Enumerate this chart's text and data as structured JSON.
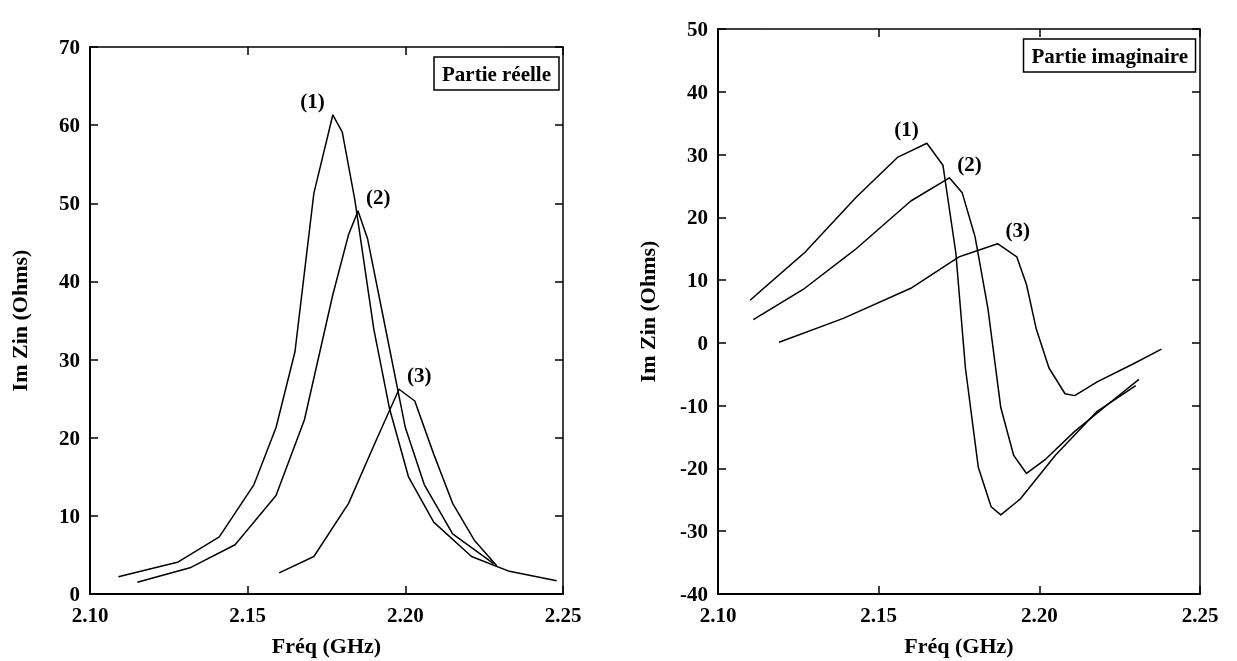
{
  "chart_data": [
    {
      "type": "line",
      "title": "Partie réelle",
      "xlabel": "Fréq (GHz)",
      "ylabel": "Im Zin (Ohms)",
      "xlim": [
        2.1,
        2.25
      ],
      "xticks": [
        {
          "value": 2.1,
          "label": "2.10"
        },
        {
          "value": 2.15,
          "label": "2.15"
        },
        {
          "value": 2.2,
          "label": "2.20"
        },
        {
          "value": 2.25,
          "label": "2.25"
        }
      ],
      "ylim": [
        0,
        70
      ],
      "yticks": [
        0,
        10,
        20,
        30,
        40,
        50,
        60,
        70
      ],
      "grid": false,
      "marker": "none",
      "line_style": "solid",
      "series": [
        {
          "name": "(1)",
          "color": "#000000",
          "x": [
            2.109,
            2.128,
            2.141,
            2.152,
            2.159,
            2.165,
            2.171,
            2.177,
            2.18,
            2.184,
            2.19,
            2.195,
            2.201,
            2.209,
            2.221,
            2.233,
            2.248
          ],
          "values": [
            2.2,
            4.1,
            7.3,
            14.0,
            21.3,
            31.0,
            51.3,
            61.3,
            59.1,
            50.4,
            33.9,
            23.7,
            15.0,
            9.2,
            4.8,
            2.9,
            1.7
          ]
        },
        {
          "name": "(2)",
          "color": "#000000",
          "x": [
            2.115,
            2.132,
            2.146,
            2.159,
            2.168,
            2.177,
            2.182,
            2.185,
            2.188,
            2.194,
            2.2,
            2.206,
            2.215,
            2.228
          ],
          "values": [
            1.5,
            3.4,
            6.3,
            12.6,
            22.3,
            38.3,
            46.0,
            49.0,
            45.5,
            33.4,
            21.3,
            14.0,
            7.7,
            3.9
          ]
        },
        {
          "name": "(3)",
          "color": "#000000",
          "x": [
            2.16,
            2.171,
            2.182,
            2.191,
            2.198,
            2.203,
            2.209,
            2.215,
            2.222,
            2.229
          ],
          "values": [
            2.7,
            4.8,
            11.6,
            19.9,
            26.2,
            24.7,
            17.9,
            11.6,
            6.8,
            3.6
          ]
        }
      ]
    },
    {
      "type": "line",
      "title": "Partie imaginaire",
      "xlabel": "Fréq (GHz)",
      "ylabel": "Im Zin (Ohms)",
      "xlim": [
        2.1,
        2.25
      ],
      "xticks": [
        {
          "value": 2.1,
          "label": "2.10"
        },
        {
          "value": 2.15,
          "label": "2.15"
        },
        {
          "value": 2.2,
          "label": "2.20"
        },
        {
          "value": 2.25,
          "label": "2.25"
        }
      ],
      "ylim": [
        -40,
        50
      ],
      "yticks": [
        -40,
        -30,
        -20,
        -10,
        0,
        10,
        20,
        30,
        40,
        50
      ],
      "grid": false,
      "marker": "none",
      "line_style": "solid",
      "series": [
        {
          "name": "(1)",
          "color": "#000000",
          "x": [
            2.11,
            2.127,
            2.143,
            2.156,
            2.165,
            2.17,
            2.174,
            2.177,
            2.181,
            2.185,
            2.188,
            2.194,
            2.205,
            2.218,
            2.23
          ],
          "values": [
            6.8,
            14.4,
            23.2,
            29.6,
            31.8,
            28.3,
            14.4,
            -4.0,
            -19.8,
            -26.1,
            -27.4,
            -24.9,
            -17.9,
            -10.9,
            -6.8
          ]
        },
        {
          "name": "(2)",
          "color": "#000000",
          "x": [
            2.111,
            2.127,
            2.143,
            2.16,
            2.172,
            2.176,
            2.18,
            2.184,
            2.188,
            2.192,
            2.196,
            2.202,
            2.211,
            2.223,
            2.231
          ],
          "values": [
            3.7,
            8.7,
            15.0,
            22.6,
            26.3,
            23.9,
            16.9,
            5.5,
            -10.3,
            -17.9,
            -20.8,
            -18.5,
            -14.1,
            -9.1,
            -5.8
          ]
        },
        {
          "name": "(3)",
          "color": "#000000",
          "x": [
            2.119,
            2.139,
            2.16,
            2.175,
            2.187,
            2.193,
            2.196,
            2.199,
            2.203,
            2.208,
            2.211,
            2.218,
            2.229,
            2.238
          ],
          "values": [
            0.1,
            3.9,
            8.7,
            13.7,
            15.8,
            13.7,
            9.3,
            2.3,
            -4.0,
            -8.1,
            -8.4,
            -6.2,
            -3.4,
            -1.0
          ]
        }
      ]
    }
  ]
}
